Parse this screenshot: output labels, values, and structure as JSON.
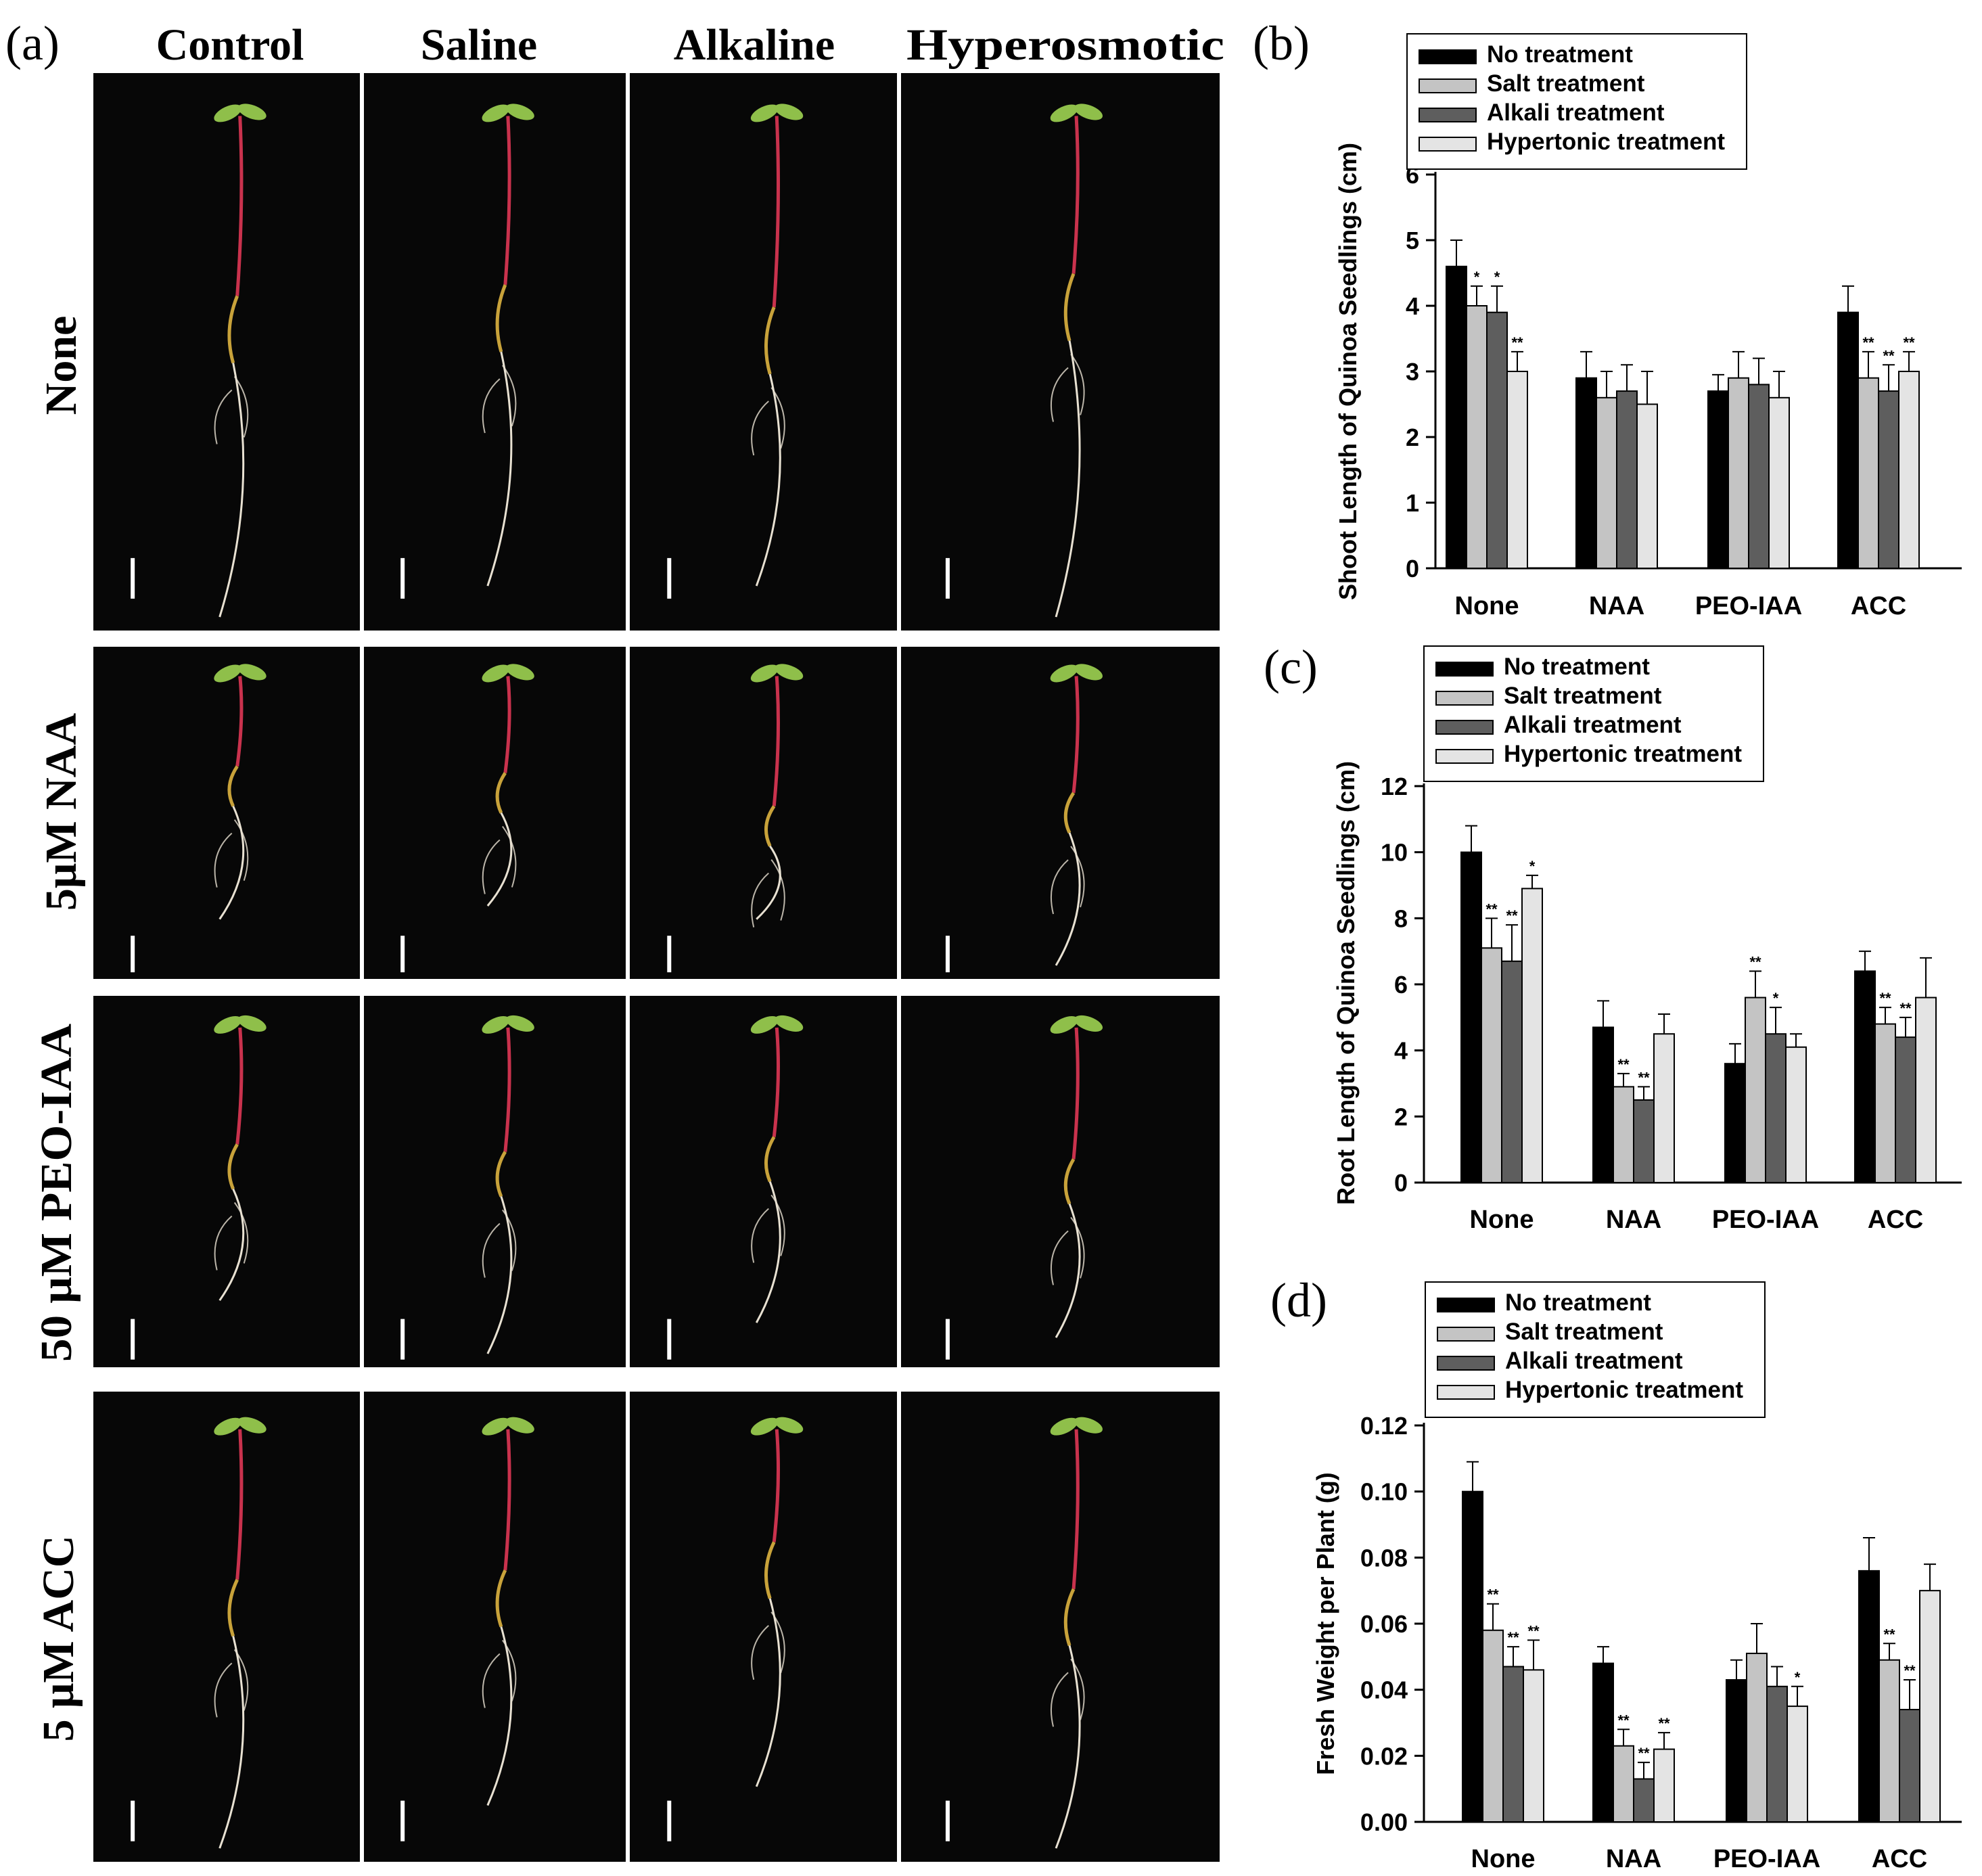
{
  "panel_a": {
    "label": "(a)",
    "columns": [
      "Control",
      "Saline",
      "Alkaline",
      "Hyperosmotic"
    ],
    "rows": [
      "None",
      "5μM NAA",
      "50 μM PEO-IAA",
      "5 μM ACC"
    ],
    "colors": {
      "background": "#070707",
      "stem": "#c9324d",
      "leaf": "#8fbf4a",
      "root": "#e8e1d2",
      "hypocotyl": "#c8a23a",
      "scale_bar": "#ffffff"
    }
  },
  "chart_data": [
    {
      "panel": "(b)",
      "type": "bar",
      "ylabel": "Shoot Length of Quinoa Seedlings (cm)",
      "xlabel": "",
      "categories": [
        "None",
        "NAA",
        "PEO-IAA",
        "ACC"
      ],
      "ylim": [
        0,
        6
      ],
      "yticks": [
        "0",
        "1",
        "2",
        "3",
        "4",
        "5",
        "6"
      ],
      "legend": "top-left",
      "grid": false,
      "series": [
        {
          "name": "No treatment",
          "color": "#000000",
          "values": [
            4.6,
            2.9,
            2.7,
            3.9
          ],
          "errors": [
            0.4,
            0.4,
            0.25,
            0.4
          ],
          "sig": [
            "",
            "",
            "",
            ""
          ]
        },
        {
          "name": "Salt treatment",
          "color": "#c4c4c4",
          "values": [
            4.0,
            2.6,
            2.9,
            2.9
          ],
          "errors": [
            0.3,
            0.4,
            0.4,
            0.4
          ],
          "sig": [
            "*",
            "",
            "",
            "**"
          ]
        },
        {
          "name": "Alkali treatment",
          "color": "#5e5e5e",
          "values": [
            3.9,
            2.7,
            2.8,
            2.7
          ],
          "errors": [
            0.4,
            0.4,
            0.4,
            0.4
          ],
          "sig": [
            "*",
            "",
            "",
            "**"
          ]
        },
        {
          "name": "Hypertonic treatment",
          "color": "#e4e4e4",
          "values": [
            3.0,
            2.5,
            2.6,
            3.0
          ],
          "errors": [
            0.3,
            0.5,
            0.4,
            0.3
          ],
          "sig": [
            "**",
            "",
            "",
            "**"
          ]
        }
      ]
    },
    {
      "panel": "(c)",
      "type": "bar",
      "ylabel": "Root Length of Quinoa Seedlings (cm)",
      "xlabel": "",
      "categories": [
        "None",
        "NAA",
        "PEO-IAA",
        "ACC"
      ],
      "ylim": [
        0,
        12
      ],
      "yticks": [
        "0",
        "2",
        "4",
        "6",
        "8",
        "10",
        "12"
      ],
      "legend": "top-left",
      "grid": false,
      "series": [
        {
          "name": "No treatment",
          "color": "#000000",
          "values": [
            10.0,
            4.7,
            3.6,
            6.4
          ],
          "errors": [
            0.8,
            0.8,
            0.6,
            0.6
          ],
          "sig": [
            "",
            "",
            "",
            ""
          ]
        },
        {
          "name": "Salt treatment",
          "color": "#c4c4c4",
          "values": [
            7.1,
            2.9,
            5.6,
            4.8
          ],
          "errors": [
            0.9,
            0.4,
            0.8,
            0.5
          ],
          "sig": [
            "**",
            "**",
            "**",
            "**"
          ]
        },
        {
          "name": "Alkali treatment",
          "color": "#5e5e5e",
          "values": [
            6.7,
            2.5,
            4.5,
            4.4
          ],
          "errors": [
            1.1,
            0.4,
            0.8,
            0.6
          ],
          "sig": [
            "**",
            "**",
            "*",
            "**"
          ]
        },
        {
          "name": "Hypertonic treatment",
          "color": "#e4e4e4",
          "values": [
            8.9,
            4.5,
            4.1,
            5.6
          ],
          "errors": [
            0.4,
            0.6,
            0.4,
            1.2
          ],
          "sig": [
            "*",
            "",
            "",
            ""
          ]
        }
      ]
    },
    {
      "panel": "(d)",
      "type": "bar",
      "ylabel": "Fresh Weight per Plant (g)",
      "xlabel": "",
      "categories": [
        "None",
        "NAA",
        "PEO-IAA",
        "ACC"
      ],
      "ylim": [
        0,
        0.12
      ],
      "yticks": [
        "0.00",
        "0.02",
        "0.04",
        "0.06",
        "0.08",
        "0.10",
        "0.12"
      ],
      "legend": "top-left",
      "grid": false,
      "series": [
        {
          "name": "No treatment",
          "color": "#000000",
          "values": [
            0.1,
            0.048,
            0.043,
            0.076
          ],
          "errors": [
            0.009,
            0.005,
            0.006,
            0.01
          ],
          "sig": [
            "",
            "",
            "",
            ""
          ]
        },
        {
          "name": "Salt treatment",
          "color": "#c4c4c4",
          "values": [
            0.058,
            0.023,
            0.051,
            0.049
          ],
          "errors": [
            0.008,
            0.005,
            0.009,
            0.005
          ],
          "sig": [
            "**",
            "**",
            "",
            "**"
          ]
        },
        {
          "name": "Alkali treatment",
          "color": "#5e5e5e",
          "values": [
            0.047,
            0.013,
            0.041,
            0.034
          ],
          "errors": [
            0.006,
            0.005,
            0.006,
            0.009
          ],
          "sig": [
            "**",
            "**",
            "",
            "**"
          ]
        },
        {
          "name": "Hypertonic treatment",
          "color": "#e4e4e4",
          "values": [
            0.046,
            0.022,
            0.035,
            0.07
          ],
          "errors": [
            0.009,
            0.005,
            0.006,
            0.008
          ],
          "sig": [
            "**",
            "**",
            "*",
            ""
          ]
        }
      ]
    }
  ]
}
